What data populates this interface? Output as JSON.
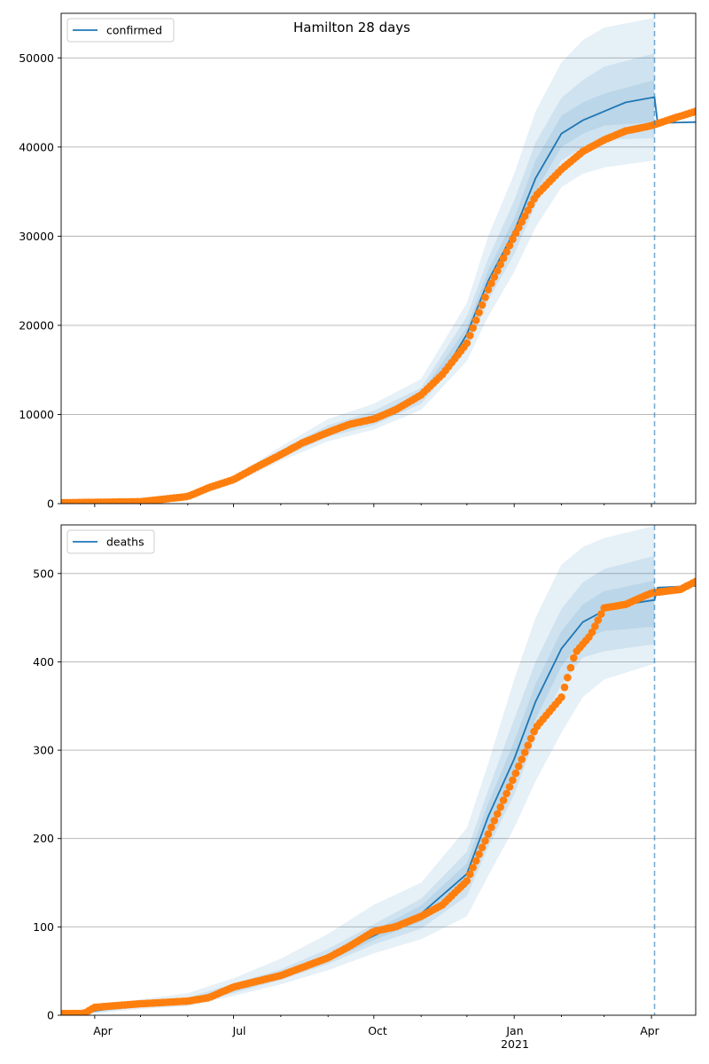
{
  "figure": {
    "title": "Hamilton 28 days"
  },
  "colors": {
    "model": "#1f77b4",
    "observed": "#ff7f0e",
    "grid": "#b0b0b0",
    "band": "#1f77b4"
  },
  "chart_data": [
    {
      "type": "line",
      "legend": [
        "confirmed"
      ],
      "legend_position": "top-left",
      "grid_y": true,
      "xlim": [
        "2020-03-10",
        "2021-04-30"
      ],
      "ylim": [
        0,
        55000
      ],
      "yticks": [
        0,
        10000,
        20000,
        30000,
        40000,
        50000
      ],
      "ytick_labels": [
        "0",
        "10000",
        "20000",
        "30000",
        "40000",
        "50000"
      ],
      "forecast_start": "2021-04-03",
      "series": [
        {
          "name": "confirmed",
          "kind": "model-median",
          "points": [
            [
              "2020-03-10",
              80
            ],
            [
              "2020-04-01",
              100
            ],
            [
              "2020-05-01",
              200
            ],
            [
              "2020-06-01",
              800
            ],
            [
              "2020-06-15",
              1500
            ],
            [
              "2020-07-01",
              2600
            ],
            [
              "2020-07-15",
              4000
            ],
            [
              "2020-08-01",
              5500
            ],
            [
              "2020-08-15",
              6800
            ],
            [
              "2020-09-01",
              8000
            ],
            [
              "2020-09-15",
              8900
            ],
            [
              "2020-10-01",
              9600
            ],
            [
              "2020-10-15",
              10500
            ],
            [
              "2020-11-01",
              12000
            ],
            [
              "2020-11-15",
              14500
            ],
            [
              "2020-12-01",
              19000
            ],
            [
              "2020-12-15",
              25000
            ],
            [
              "2021-01-01",
              30500
            ],
            [
              "2021-01-15",
              36500
            ],
            [
              "2021-02-01",
              41500
            ],
            [
              "2021-02-15",
              43000
            ],
            [
              "2021-03-01",
              44000
            ],
            [
              "2021-03-15",
              45000
            ],
            [
              "2021-04-03",
              45600
            ],
            [
              "2021-04-05",
              42700
            ],
            [
              "2021-04-30",
              42800
            ]
          ]
        },
        {
          "name": "observed",
          "kind": "observed",
          "points": [
            [
              "2020-03-10",
              100
            ],
            [
              "2020-04-01",
              150
            ],
            [
              "2020-05-01",
              220
            ],
            [
              "2020-06-01",
              800
            ],
            [
              "2020-06-15",
              1800
            ],
            [
              "2020-07-01",
              2700
            ],
            [
              "2020-07-15",
              4000
            ],
            [
              "2020-08-01",
              5500
            ],
            [
              "2020-08-15",
              6800
            ],
            [
              "2020-09-01",
              8000
            ],
            [
              "2020-09-15",
              8900
            ],
            [
              "2020-10-01",
              9500
            ],
            [
              "2020-10-15",
              10500
            ],
            [
              "2020-11-01",
              12200
            ],
            [
              "2020-11-15",
              14500
            ],
            [
              "2020-12-01",
              18000
            ],
            [
              "2020-12-15",
              24000
            ],
            [
              "2021-01-01",
              30000
            ],
            [
              "2021-01-15",
              34500
            ],
            [
              "2021-02-01",
              37500
            ],
            [
              "2021-02-15",
              39500
            ],
            [
              "2021-03-01",
              40800
            ],
            [
              "2021-03-15",
              41800
            ],
            [
              "2021-04-01",
              42400
            ],
            [
              "2021-04-15",
              43200
            ],
            [
              "2021-04-30",
              44000
            ]
          ]
        }
      ],
      "bands": [
        {
          "points": [
            [
              "2020-03-10",
              0,
              200
            ],
            [
              "2020-05-01",
              100,
              400
            ],
            [
              "2020-06-01",
              600,
              1000
            ],
            [
              "2020-07-01",
              2200,
              3000
            ],
            [
              "2020-08-01",
              4800,
              6400
            ],
            [
              "2020-09-01",
              7000,
              9500
            ],
            [
              "2020-10-01",
              8300,
              11200
            ],
            [
              "2020-11-01",
              10500,
              14000
            ],
            [
              "2020-12-01",
              16000,
              22500
            ],
            [
              "2020-12-15",
              21000,
              30000
            ],
            [
              "2021-01-01",
              26000,
              37000
            ],
            [
              "2021-01-15",
              31000,
              44000
            ],
            [
              "2021-02-01",
              35500,
              49500
            ],
            [
              "2021-02-15",
              37000,
              52000
            ],
            [
              "2021-03-01",
              37700,
              53400
            ],
            [
              "2021-04-03",
              38500,
              54500
            ]
          ]
        },
        {
          "points": [
            [
              "2020-03-10",
              20,
              160
            ],
            [
              "2020-05-01",
              150,
              300
            ],
            [
              "2020-06-01",
              700,
              900
            ],
            [
              "2020-07-01",
              2400,
              2800
            ],
            [
              "2020-08-01",
              5100,
              6000
            ],
            [
              "2020-09-01",
              7500,
              8800
            ],
            [
              "2020-10-01",
              8800,
              10400
            ],
            [
              "2020-11-01",
              11200,
              13000
            ],
            [
              "2020-12-01",
              17200,
              21000
            ],
            [
              "2020-12-15",
              22800,
              27500
            ],
            [
              "2021-01-01",
              28000,
              34000
            ],
            [
              "2021-01-15",
              33500,
              40500
            ],
            [
              "2021-02-01",
              38500,
              45500
            ],
            [
              "2021-02-15",
              40000,
              47500
            ],
            [
              "2021-03-01",
              40800,
              49000
            ],
            [
              "2021-04-03",
              41000,
              50500
            ]
          ]
        },
        {
          "points": [
            [
              "2020-03-10",
              40,
              130
            ],
            [
              "2020-05-01",
              170,
              260
            ],
            [
              "2020-06-01",
              740,
              860
            ],
            [
              "2020-07-01",
              2500,
              2700
            ],
            [
              "2020-08-01",
              5300,
              5700
            ],
            [
              "2020-09-01",
              7800,
              8300
            ],
            [
              "2020-10-01",
              9200,
              9900
            ],
            [
              "2020-11-01",
              11700,
              12400
            ],
            [
              "2020-12-01",
              18200,
              19800
            ],
            [
              "2020-12-15",
              24000,
              26200
            ],
            [
              "2021-01-01",
              29400,
              32000
            ],
            [
              "2021-01-15",
              35000,
              38500
            ],
            [
              "2021-02-01",
              40000,
              43500
            ],
            [
              "2021-02-15",
              41500,
              45000
            ],
            [
              "2021-03-01",
              42400,
              46000
            ],
            [
              "2021-04-03",
              42800,
              47500
            ]
          ]
        }
      ]
    },
    {
      "type": "line",
      "legend": [
        "deaths"
      ],
      "legend_position": "top-left",
      "grid_y": true,
      "xlim": [
        "2020-03-10",
        "2021-04-30"
      ],
      "ylim": [
        0,
        555
      ],
      "yticks": [
        0,
        100,
        200,
        300,
        400,
        500
      ],
      "ytick_labels": [
        "0",
        "100",
        "200",
        "300",
        "400",
        "500"
      ],
      "xticks": [
        "2020-04-01",
        "2020-07-01",
        "2020-10-01",
        "2021-01-01",
        "2021-04-01"
      ],
      "xtick_labels": [
        "Apr",
        "Jul",
        "Oct",
        "Jan",
        "Apr"
      ],
      "xtick_sublabel": "2021",
      "forecast_start": "2021-04-03",
      "series": [
        {
          "name": "deaths",
          "kind": "model-median",
          "points": [
            [
              "2020-03-10",
              1
            ],
            [
              "2020-04-01",
              5
            ],
            [
              "2020-05-01",
              12
            ],
            [
              "2020-06-01",
              16
            ],
            [
              "2020-07-01",
              30
            ],
            [
              "2020-08-01",
              45
            ],
            [
              "2020-09-01",
              65
            ],
            [
              "2020-10-01",
              90
            ],
            [
              "2020-11-01",
              115
            ],
            [
              "2020-12-01",
              160
            ],
            [
              "2020-12-15",
              225
            ],
            [
              "2021-01-01",
              290
            ],
            [
              "2021-01-15",
              355
            ],
            [
              "2021-02-01",
              415
            ],
            [
              "2021-02-15",
              445
            ],
            [
              "2021-03-01",
              458
            ],
            [
              "2021-03-15",
              465
            ],
            [
              "2021-04-03",
              470
            ],
            [
              "2021-04-05",
              484
            ],
            [
              "2021-04-30",
              486
            ]
          ]
        },
        {
          "name": "observed",
          "kind": "observed",
          "points": [
            [
              "2020-03-10",
              2
            ],
            [
              "2020-03-25",
              2
            ],
            [
              "2020-04-01",
              9
            ],
            [
              "2020-05-01",
              13
            ],
            [
              "2020-06-01",
              16
            ],
            [
              "2020-06-15",
              20
            ],
            [
              "2020-07-01",
              32
            ],
            [
              "2020-08-01",
              45
            ],
            [
              "2020-09-01",
              65
            ],
            [
              "2020-09-15",
              78
            ],
            [
              "2020-10-01",
              95
            ],
            [
              "2020-10-15",
              100
            ],
            [
              "2020-11-01",
              112
            ],
            [
              "2020-11-15",
              125
            ],
            [
              "2020-12-01",
              152
            ],
            [
              "2020-12-15",
              205
            ],
            [
              "2021-01-01",
              270
            ],
            [
              "2021-01-15",
              325
            ],
            [
              "2021-02-01",
              360
            ],
            [
              "2021-02-10",
              410
            ],
            [
              "2021-02-20",
              430
            ],
            [
              "2021-03-01",
              461
            ],
            [
              "2021-03-15",
              465
            ],
            [
              "2021-04-01",
              478
            ],
            [
              "2021-04-20",
              482
            ],
            [
              "2021-04-30",
              491
            ]
          ]
        }
      ],
      "bands": [
        {
          "points": [
            [
              "2020-03-10",
              0,
              3
            ],
            [
              "2020-04-01",
              2,
              9
            ],
            [
              "2020-05-01",
              7,
              18
            ],
            [
              "2020-06-01",
              10,
              25
            ],
            [
              "2020-07-01",
              22,
              42
            ],
            [
              "2020-08-01",
              35,
              64
            ],
            [
              "2020-09-01",
              51,
              92
            ],
            [
              "2020-10-01",
              70,
              125
            ],
            [
              "2020-11-01",
              86,
              150
            ],
            [
              "2020-12-01",
              112,
              212
            ],
            [
              "2020-12-15",
              158,
              285
            ],
            [
              "2021-01-01",
              212,
              380
            ],
            [
              "2021-01-15",
              265,
              450
            ],
            [
              "2021-02-01",
              320,
              510
            ],
            [
              "2021-02-15",
              360,
              530
            ],
            [
              "2021-03-01",
              380,
              540
            ],
            [
              "2021-04-03",
              398,
              554
            ]
          ]
        },
        {
          "points": [
            [
              "2020-03-10",
              0,
              2
            ],
            [
              "2020-04-01",
              3,
              7
            ],
            [
              "2020-05-01",
              9,
              15
            ],
            [
              "2020-06-01",
              12,
              20
            ],
            [
              "2020-07-01",
              25,
              36
            ],
            [
              "2020-08-01",
              40,
              52
            ],
            [
              "2020-09-01",
              58,
              75
            ],
            [
              "2020-10-01",
              80,
              103
            ],
            [
              "2020-11-01",
              98,
              132
            ],
            [
              "2020-12-01",
              135,
              185
            ],
            [
              "2020-12-15",
              190,
              255
            ],
            [
              "2021-01-01",
              250,
              335
            ],
            [
              "2021-01-15",
              315,
              400
            ],
            [
              "2021-02-01",
              375,
              460
            ],
            [
              "2021-02-15",
              405,
              490
            ],
            [
              "2021-03-01",
              412,
              505
            ],
            [
              "2021-04-03",
              420,
              520
            ]
          ]
        },
        {
          "points": [
            [
              "2020-03-10",
              0,
              2
            ],
            [
              "2020-04-01",
              4,
              6
            ],
            [
              "2020-05-01",
              10,
              14
            ],
            [
              "2020-06-01",
              14,
              18
            ],
            [
              "2020-07-01",
              27,
              33
            ],
            [
              "2020-08-01",
              42,
              48
            ],
            [
              "2020-09-01",
              61,
              69
            ],
            [
              "2020-10-01",
              85,
              96
            ],
            [
              "2020-11-01",
              106,
              124
            ],
            [
              "2020-12-01",
              146,
              172
            ],
            [
              "2020-12-15",
              207,
              240
            ],
            [
              "2021-01-01",
              270,
              310
            ],
            [
              "2021-01-15",
              335,
              375
            ],
            [
              "2021-02-01",
              395,
              435
            ],
            [
              "2021-02-15",
              425,
              465
            ],
            [
              "2021-03-01",
              435,
              480
            ],
            [
              "2021-04-03",
              440,
              492
            ]
          ]
        }
      ]
    }
  ]
}
